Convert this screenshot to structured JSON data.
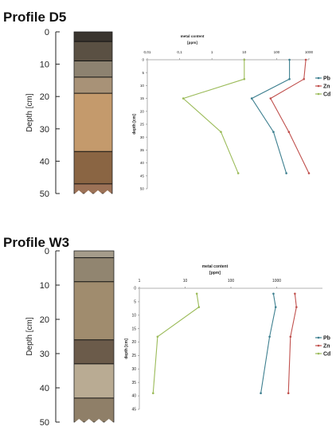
{
  "chart_data": [
    {
      "type": "line",
      "title": "Profile D5",
      "core": {
        "ylabel": "Depth [cm]",
        "ticks": [
          "0",
          "10",
          "20",
          "30",
          "40",
          "50"
        ],
        "ticks_values": [
          0,
          10,
          20,
          30,
          40,
          50
        ],
        "ylim": [
          0,
          50
        ],
        "layers": [
          {
            "from": 0,
            "to": 3,
            "color": "#3a352f"
          },
          {
            "from": 3,
            "to": 9,
            "color": "#5a5043"
          },
          {
            "from": 9,
            "to": 14,
            "color": "#8d8270"
          },
          {
            "from": 14,
            "to": 19,
            "color": "#a89277"
          },
          {
            "from": 19,
            "to": 37,
            "color": "#c49a6c"
          },
          {
            "from": 37,
            "to": 47,
            "color": "#8a6543"
          },
          {
            "from": 47,
            "to": 50,
            "color": "#9c7257"
          }
        ]
      },
      "xlabel_line1": "metal content",
      "xlabel_line2": "[ppm]",
      "ylabel": "depth [cm]",
      "xscale": "log",
      "xlim": [
        0.01,
        1000
      ],
      "xticks": [
        {
          "value": 0.01,
          "label": "0,01"
        },
        {
          "value": 0.1,
          "label": "0,1"
        },
        {
          "value": 1,
          "label": "1"
        },
        {
          "value": 10,
          "label": "10"
        },
        {
          "value": 100,
          "label": "100"
        },
        {
          "value": 1000,
          "label": "1000"
        }
      ],
      "ylim": [
        0,
        50
      ],
      "yticks": [
        {
          "value": 0,
          "label": "0"
        },
        {
          "value": 5,
          "label": "5"
        },
        {
          "value": 10,
          "label": "10"
        },
        {
          "value": 15,
          "label": "15"
        },
        {
          "value": 20,
          "label": "20"
        },
        {
          "value": 25,
          "label": "25"
        },
        {
          "value": 30,
          "label": "30"
        },
        {
          "value": 35,
          "label": "35"
        },
        {
          "value": 40,
          "label": "40"
        },
        {
          "value": 45,
          "label": "45"
        },
        {
          "value": 50,
          "label": "50"
        }
      ],
      "legend_position": "right",
      "series": [
        {
          "name": "Pb",
          "color": "#3d7f8f",
          "points": [
            [
              250,
              0
            ],
            [
              250,
              7.5
            ],
            [
              17,
              15
            ],
            [
              80,
              28
            ],
            [
              200,
              44
            ]
          ]
        },
        {
          "name": "Zn",
          "color": "#c0504d",
          "points": [
            [
              800,
              0
            ],
            [
              700,
              7.5
            ],
            [
              65,
              15
            ],
            [
              240,
              28
            ],
            [
              1000,
              44
            ]
          ]
        },
        {
          "name": "Cd",
          "color": "#9bbb59",
          "points": [
            [
              10,
              0
            ],
            [
              10,
              7.5
            ],
            [
              0.13,
              15
            ],
            [
              1.9,
              28
            ],
            [
              6.5,
              44
            ]
          ]
        }
      ]
    },
    {
      "type": "line",
      "title": "Profile W3",
      "core": {
        "ylabel": "Depth [cm]",
        "ticks": [
          "0",
          "10",
          "20",
          "30",
          "40",
          "50"
        ],
        "ticks_values": [
          0,
          10,
          20,
          30,
          40,
          50
        ],
        "ylim": [
          0,
          50
        ],
        "layers": [
          {
            "from": 0,
            "to": 2,
            "color": "#a59c8b"
          },
          {
            "from": 2,
            "to": 9,
            "color": "#918570"
          },
          {
            "from": 9,
            "to": 26,
            "color": "#a08c6e"
          },
          {
            "from": 26,
            "to": 33,
            "color": "#6b5b4a"
          },
          {
            "from": 33,
            "to": 43,
            "color": "#b9ab93"
          },
          {
            "from": 43,
            "to": 50,
            "color": "#8f7f68"
          }
        ]
      },
      "xlabel_line1": "metal content",
      "xlabel_line2": "[ppm]",
      "ylabel": "depth [cm]",
      "xscale": "log",
      "xlim": [
        1,
        10000
      ],
      "xticks": [
        {
          "value": 1,
          "label": "1"
        },
        {
          "value": 10,
          "label": "10"
        },
        {
          "value": 100,
          "label": "100"
        },
        {
          "value": 1000,
          "label": "1000"
        }
      ],
      "ylim": [
        0,
        45
      ],
      "yticks": [
        {
          "value": 0,
          "label": "0"
        },
        {
          "value": 5,
          "label": "5"
        },
        {
          "value": 10,
          "label": "10"
        },
        {
          "value": 15,
          "label": "15"
        },
        {
          "value": 20,
          "label": "20"
        },
        {
          "value": 25,
          "label": "25"
        },
        {
          "value": 30,
          "label": "30"
        },
        {
          "value": 35,
          "label": "35"
        },
        {
          "value": 40,
          "label": "40"
        },
        {
          "value": 45,
          "label": "45"
        }
      ],
      "legend_position": "right",
      "series": [
        {
          "name": "Pb",
          "color": "#3d7f8f",
          "points": [
            [
              850,
              2
            ],
            [
              950,
              7
            ],
            [
              700,
              18
            ],
            [
              450,
              39
            ]
          ]
        },
        {
          "name": "Zn",
          "color": "#c0504d",
          "points": [
            [
              2500,
              2
            ],
            [
              2700,
              7
            ],
            [
              2000,
              18
            ],
            [
              1800,
              39
            ]
          ]
        },
        {
          "name": "Cd",
          "color": "#9bbb59",
          "points": [
            [
              18,
              2
            ],
            [
              20,
              7
            ],
            [
              2.5,
              18
            ],
            [
              2,
              39
            ]
          ]
        }
      ]
    }
  ]
}
